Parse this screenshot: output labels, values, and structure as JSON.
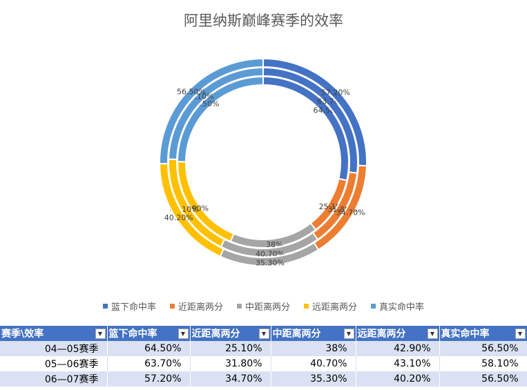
{
  "chart_data": {
    "type": "doughnut",
    "title": "阿里纳斯巅峰赛季的效率",
    "categories": [
      "篮下命中率",
      "近距离两分",
      "中距离两分",
      "远距离两分",
      "真实命中率"
    ],
    "colors": [
      "#4472c4",
      "#ed7d31",
      "#a5a5a5",
      "#ffc000",
      "#5b9bd5"
    ],
    "series": [
      {
        "name": "04—05赛季",
        "values": [
          64.5,
          25.1,
          38,
          42.9,
          56.5
        ],
        "labels": [
          "64.50%",
          "25.10%",
          "38%",
          "42.90%",
          "56.50%"
        ]
      },
      {
        "name": "05—06赛季",
        "values": [
          63.7,
          31.8,
          40.7,
          43.1,
          58.1
        ],
        "labels": [
          "63.70%",
          "31.80%",
          "40.70%",
          "43.10%",
          "58.10%"
        ]
      },
      {
        "name": "06—07赛季",
        "values": [
          57.2,
          34.7,
          35.3,
          40.2,
          56.5
        ],
        "labels": [
          "57.20%",
          "34.70%",
          "35.30%",
          "40.20%",
          "56.50%"
        ]
      }
    ],
    "legend_position": "bottom"
  },
  "table": {
    "headers": [
      "赛季\\效率",
      "篮下命中率",
      "近距离两分",
      "中距离两分",
      "远距离两分",
      "真实命中率"
    ],
    "filter_icon": "dropdown-arrow-icon",
    "rows": [
      [
        "04—05赛季",
        "64.50%",
        "25.10%",
        "38%",
        "42.90%",
        "56.50%"
      ],
      [
        "05—06赛季",
        "63.70%",
        "31.80%",
        "40.70%",
        "43.10%",
        "58.10%"
      ],
      [
        "06—07赛季",
        "57.20%",
        "34.70%",
        "35.30%",
        "40.20%",
        "56.50%"
      ]
    ]
  }
}
